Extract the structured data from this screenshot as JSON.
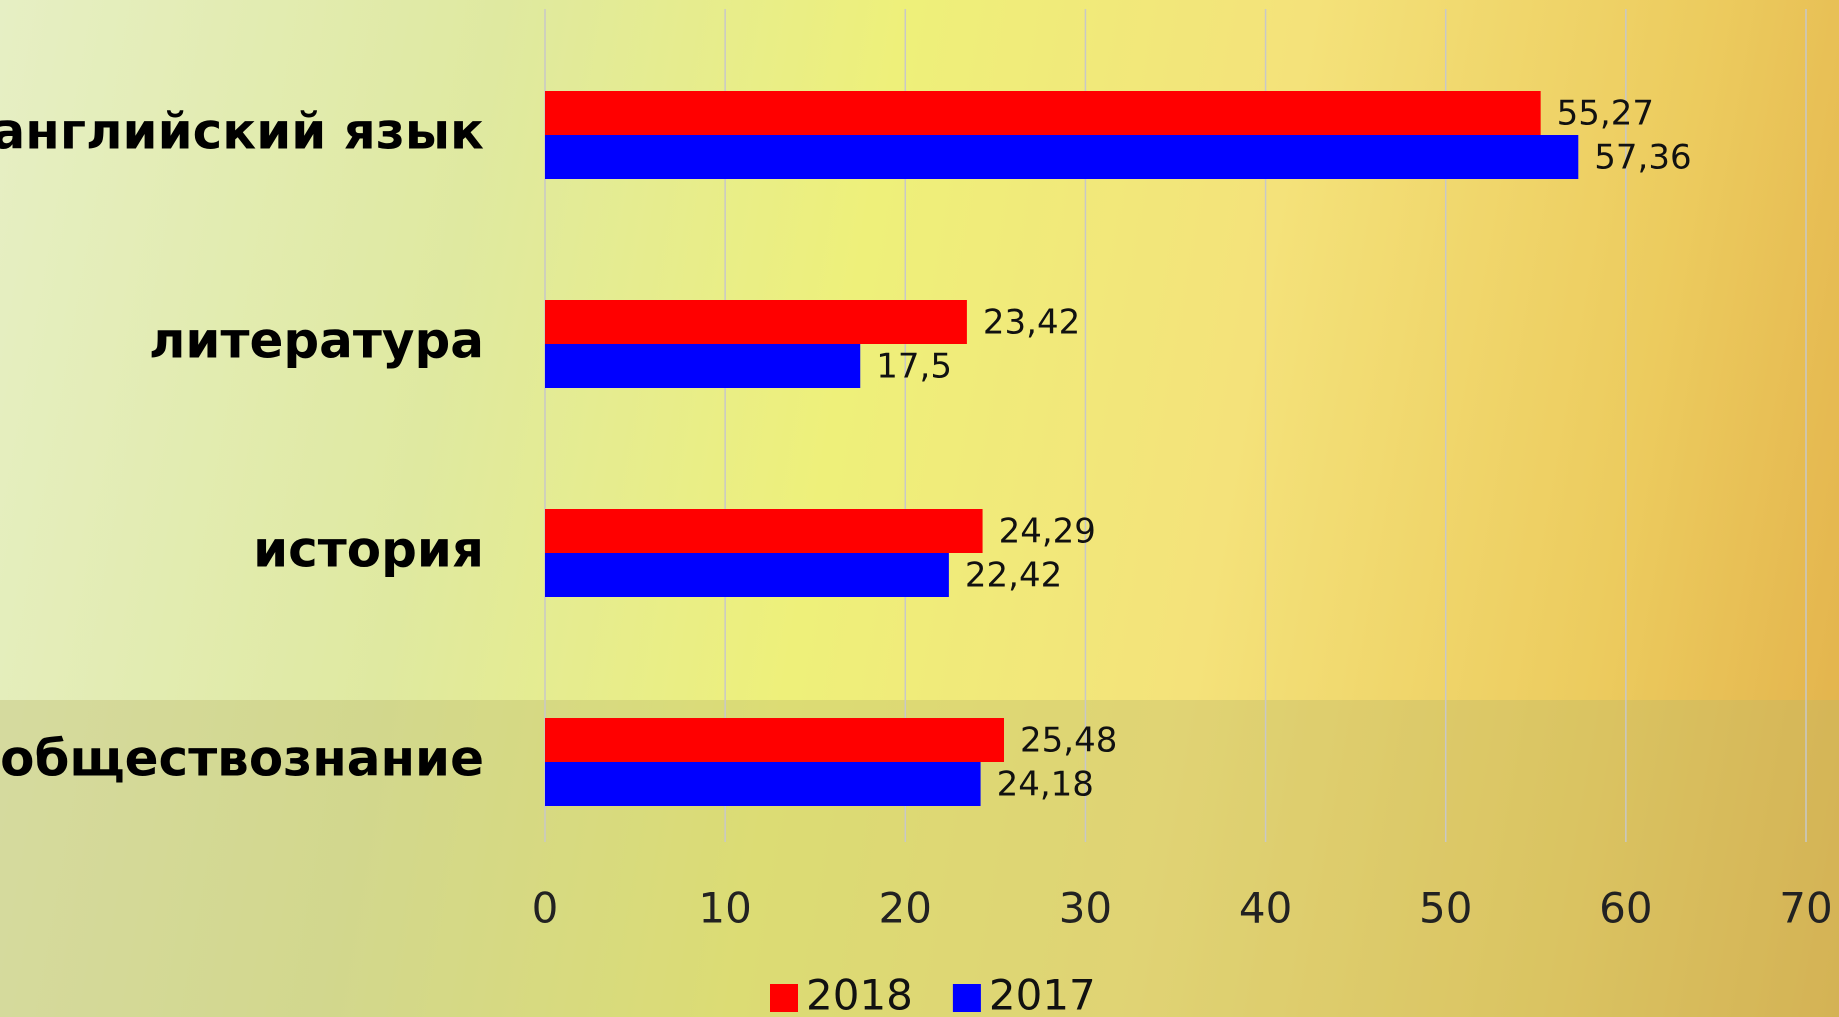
{
  "chart_data": {
    "type": "hbar",
    "categories": [
      "английский язык",
      "литература",
      "история",
      "обществознание"
    ],
    "series": [
      {
        "name": "2018",
        "color": "#ff0000",
        "values": [
          55.27,
          23.42,
          24.29,
          25.48
        ],
        "value_labels": [
          "55,27",
          "23,42",
          "24,29",
          "25,48"
        ]
      },
      {
        "name": "2017",
        "color": "#0000ff",
        "values": [
          57.36,
          17.5,
          22.42,
          24.18
        ],
        "value_labels": [
          "57,36",
          "17,5",
          "22,42",
          "24,18"
        ]
      }
    ],
    "xlim": [
      0,
      70
    ],
    "xticks": [
      0,
      10,
      20,
      30,
      40,
      50,
      60,
      70
    ],
    "grid": true,
    "legend": "bottom"
  }
}
